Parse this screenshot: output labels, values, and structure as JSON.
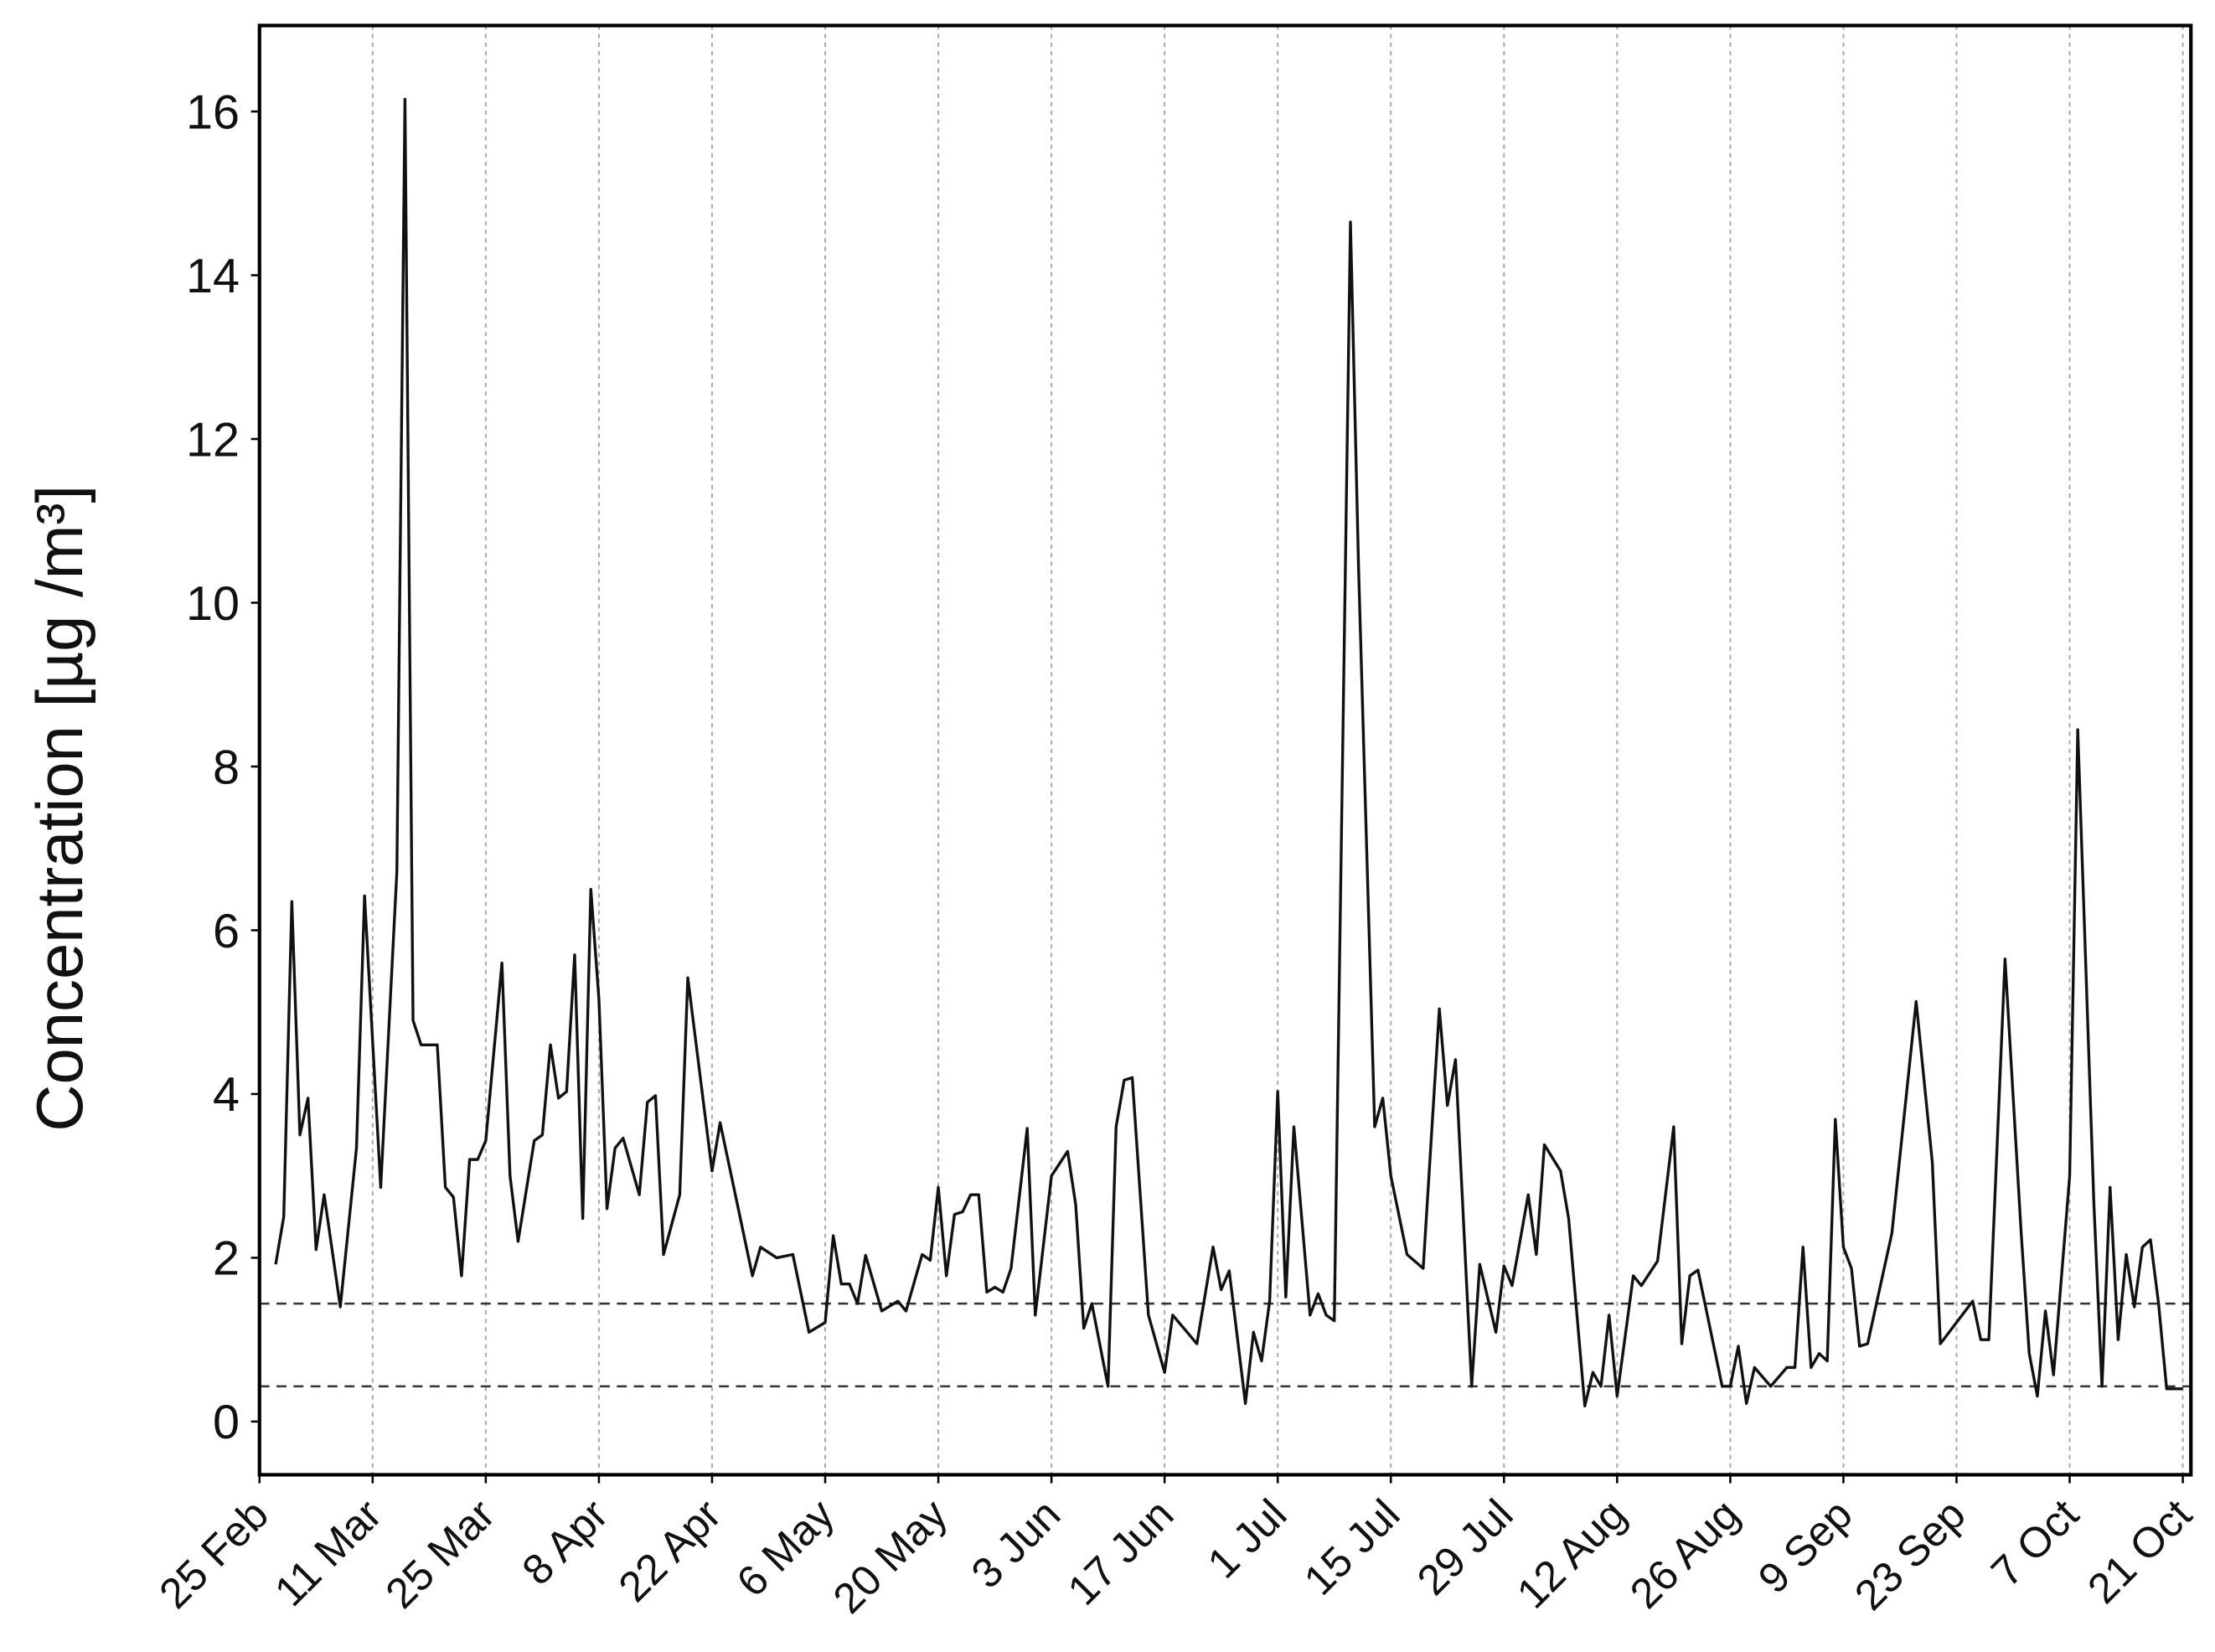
{
  "chart_data": {
    "type": "line",
    "y_label": "Concentration [µg /m³]",
    "xticks": [
      "25 Feb",
      "11 Mar",
      "25 Mar",
      "8 Apr",
      "22 Apr",
      "6 May",
      "20 May",
      "3 Jun",
      "17 Jun",
      "1 Jul",
      "15 Jul",
      "29 Jul",
      "12 Aug",
      "26 Aug",
      "9 Sep",
      "23 Sep",
      "7 Oct",
      "21 Oct"
    ],
    "xlim": [
      "25 Feb",
      "22 Oct"
    ],
    "ylim": [
      -0.65,
      17.05
    ],
    "yticks": [
      0,
      2,
      4,
      6,
      8,
      10,
      12,
      14,
      16
    ],
    "grid": true,
    "reference_lines": [
      1.44,
      0.43
    ],
    "x": [
      "27 Feb",
      "28 Feb",
      "1 Mar",
      "2 Mar",
      "3 Mar",
      "4 Mar",
      "5 Mar",
      "7 Mar",
      "9 Mar",
      "10 Mar",
      "12 Mar",
      "14 Mar",
      "15 Mar",
      "16 Mar",
      "17 Mar",
      "19 Mar",
      "20 Mar",
      "21 Mar",
      "22 Mar",
      "23 Mar",
      "24 Mar",
      "25 Mar",
      "27 Mar",
      "28 Mar",
      "29 Mar",
      "31 Mar",
      "1 Apr",
      "2 Apr",
      "3 Apr",
      "4 Apr",
      "5 Apr",
      "6 Apr",
      "7 Apr",
      "8 Apr",
      "9 Apr",
      "10 Apr",
      "11 Apr",
      "13 Apr",
      "14 Apr",
      "15 Apr",
      "16 Apr",
      "18 Apr",
      "19 Apr",
      "22 Apr",
      "23 Apr",
      "27 Apr",
      "28 Apr",
      "30 Apr",
      "2 May",
      "4 May",
      "6 May",
      "7 May",
      "8 May",
      "9 May",
      "10 May",
      "11 May",
      "13 May",
      "15 May",
      "16 May",
      "18 May",
      "19 May",
      "20 May",
      "21 May",
      "22 May",
      "23 May",
      "24 May",
      "25 May",
      "26 May",
      "27 May",
      "28 May",
      "29 May",
      "31 May",
      "1 Jun",
      "3 Jun",
      "5 Jun",
      "6 Jun",
      "7 Jun",
      "8 Jun",
      "10 Jun",
      "11 Jun",
      "12 Jun",
      "13 Jun",
      "15 Jun",
      "17 Jun",
      "18 Jun",
      "21 Jun",
      "23 Jun",
      "24 Jun",
      "25 Jun",
      "27 Jun",
      "28 Jun",
      "29 Jun",
      "30 Jun",
      "1 Jul",
      "2 Jul",
      "3 Jul",
      "5 Jul",
      "6 Jul",
      "7 Jul",
      "8 Jul",
      "10 Jul",
      "11 Jul",
      "13 Jul",
      "14 Jul",
      "15 Jul",
      "17 Jul",
      "19 Jul",
      "21 Jul",
      "22 Jul",
      "23 Jul",
      "25 Jul",
      "26 Jul",
      "28 Jul",
      "29 Jul",
      "30 Jul",
      "1 Aug",
      "2 Aug",
      "3 Aug",
      "5 Aug",
      "6 Aug",
      "8 Aug",
      "9 Aug",
      "10 Aug",
      "11 Aug",
      "12 Aug",
      "14 Aug",
      "15 Aug",
      "17 Aug",
      "19 Aug",
      "20 Aug",
      "21 Aug",
      "22 Aug",
      "25 Aug",
      "26 Aug",
      "27 Aug",
      "28 Aug",
      "29 Aug",
      "31 Aug",
      "2 Sep",
      "3 Sep",
      "4 Sep",
      "5 Sep",
      "6 Sep",
      "7 Sep",
      "8 Sep",
      "9 Sep",
      "10 Sep",
      "11 Sep",
      "12 Sep",
      "15 Sep",
      "18 Sep",
      "20 Sep",
      "21 Sep",
      "25 Sep",
      "26 Sep",
      "27 Sep",
      "29 Sep",
      "1 Oct",
      "2 Oct",
      "3 Oct",
      "4 Oct",
      "5 Oct",
      "7 Oct",
      "8 Oct",
      "10 Oct",
      "11 Oct",
      "12 Oct",
      "13 Oct",
      "14 Oct",
      "15 Oct",
      "16 Oct",
      "17 Oct",
      "18 Oct",
      "19 Oct",
      "21 Oct"
    ],
    "series": [
      {
        "color": "#111111",
        "values": [
          1.92,
          2.5,
          6.35,
          3.5,
          3.95,
          2.1,
          2.77,
          1.4,
          3.34,
          6.42,
          2.86,
          6.72,
          16.15,
          4.9,
          4.6,
          4.6,
          2.86,
          2.74,
          1.78,
          3.2,
          3.2,
          3.43,
          5.6,
          3.0,
          2.2,
          3.43,
          3.5,
          4.6,
          3.95,
          4.03,
          5.7,
          2.48,
          6.5,
          5.16,
          2.6,
          3.34,
          3.46,
          2.77,
          3.9,
          3.98,
          2.04,
          2.77,
          5.42,
          3.06,
          3.65,
          1.78,
          2.13,
          2.0,
          2.04,
          1.09,
          1.21,
          2.27,
          1.68,
          1.68,
          1.44,
          2.03,
          1.35,
          1.47,
          1.35,
          2.04,
          1.97,
          2.86,
          1.78,
          2.53,
          2.56,
          2.77,
          2.77,
          1.58,
          1.64,
          1.58,
          1.87,
          3.58,
          1.3,
          3.0,
          3.3,
          2.65,
          1.14,
          1.44,
          0.43,
          3.6,
          4.17,
          4.2,
          1.3,
          0.6,
          1.3,
          0.95,
          2.13,
          1.61,
          1.84,
          0.22,
          1.09,
          0.74,
          1.47,
          4.03,
          1.52,
          3.6,
          1.3,
          1.56,
          1.3,
          1.23,
          14.65,
          10.44,
          3.6,
          3.95,
          3.0,
          2.04,
          1.87,
          5.04,
          3.86,
          4.42,
          0.43,
          1.92,
          1.09,
          1.9,
          1.66,
          2.77,
          2.04,
          3.38,
          3.06,
          2.48,
          0.19,
          0.6,
          0.43,
          1.3,
          0.31,
          1.78,
          1.66,
          1.96,
          3.6,
          0.95,
          1.78,
          1.85,
          0.43,
          0.43,
          0.92,
          0.22,
          0.66,
          0.43,
          0.66,
          0.66,
          2.13,
          0.66,
          0.83,
          0.74,
          3.69,
          2.13,
          1.87,
          0.92,
          0.95,
          2.3,
          5.13,
          3.17,
          0.95,
          1.47,
          1.0,
          1.0,
          5.65,
          2.3,
          0.83,
          0.31,
          1.35,
          0.57,
          3.0,
          8.45,
          2.65,
          0.43,
          2.86,
          1.0,
          2.04,
          1.4,
          2.13,
          2.22,
          1.44,
          0.4,
          0.4
        ]
      }
    ]
  }
}
